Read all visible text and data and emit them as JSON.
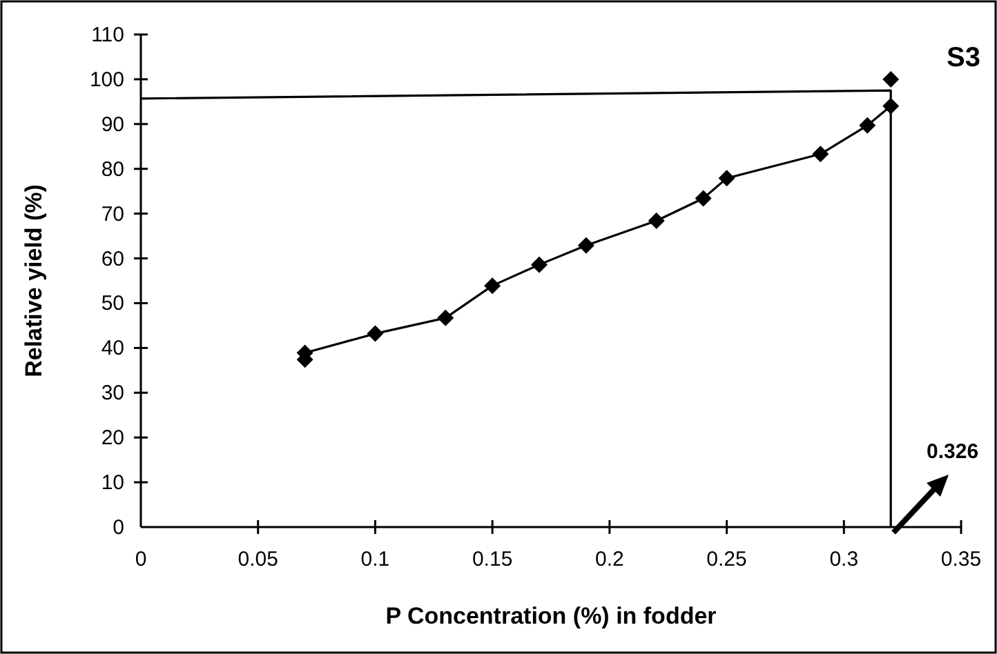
{
  "chart_data": {
    "type": "line",
    "title": "S3",
    "xlabel": "P Concentration (%) in fodder",
    "ylabel": "Relative yield (%)",
    "xlim": [
      0,
      0.35
    ],
    "xticks": [
      0,
      0.05,
      0.1,
      0.15,
      0.2,
      0.25,
      0.3,
      0.35
    ],
    "ylim": [
      0,
      110
    ],
    "yticks": [
      0,
      10,
      20,
      30,
      40,
      50,
      60,
      70,
      80,
      90,
      100,
      110
    ],
    "grid": false,
    "marker": "diamond",
    "line_style": "solid",
    "series": [
      {
        "color": "#000000",
        "x": [
          0.07,
          0.07,
          0.1,
          0.13,
          0.15,
          0.17,
          0.19,
          0.22,
          0.24,
          0.25,
          0.29,
          0.31,
          0.32
        ],
        "values": [
          37.4,
          38.9,
          43.2,
          46.7,
          53.9,
          58.6,
          62.9,
          68.4,
          73.4,
          77.9,
          83.3,
          89.7,
          94
        ]
      },
      {
        "type": "scatter",
        "color": "#000000",
        "marker": "diamond",
        "x": [
          0.32
        ],
        "values": [
          100
        ]
      },
      {
        "type": "line",
        "color": "#000000",
        "marker": "none",
        "x": [
          0,
          0.32,
          0.32
        ],
        "values": [
          95.7,
          97.5,
          0
        ]
      }
    ],
    "annotations": [
      "0.326"
    ]
  }
}
